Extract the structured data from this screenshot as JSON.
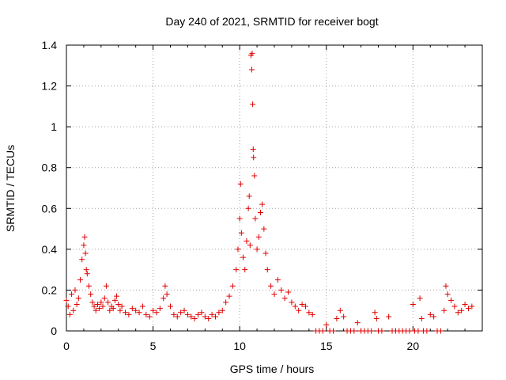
{
  "chart_data": {
    "type": "scatter",
    "title": "Day 240 of 2021, SRMTID for receiver bogt",
    "xlabel": "GPS time / hours",
    "ylabel": "SRMTID / TECUs",
    "xlim": [
      0,
      24
    ],
    "ylim": [
      0,
      1.4
    ],
    "x_ticks": [
      0,
      5,
      10,
      15,
      20
    ],
    "x_tick_labels": [
      "0",
      "5",
      "10",
      "15",
      "20"
    ],
    "y_ticks": [
      0,
      0.2,
      0.4,
      0.6,
      0.8,
      1.0,
      1.2,
      1.4
    ],
    "y_tick_labels": [
      "0",
      "0.2",
      "0.4",
      "0.6",
      "0.8",
      "1",
      "1.2",
      "1.4"
    ],
    "grid": true,
    "marker": "+",
    "marker_color": "#e00000",
    "series": [
      {
        "name": "SRMTID",
        "points": [
          [
            0.0,
            0.15
          ],
          [
            0.1,
            0.12
          ],
          [
            0.2,
            0.08
          ],
          [
            0.3,
            0.18
          ],
          [
            0.4,
            0.1
          ],
          [
            0.5,
            0.2
          ],
          [
            0.6,
            0.13
          ],
          [
            0.7,
            0.16
          ],
          [
            0.8,
            0.25
          ],
          [
            0.9,
            0.35
          ],
          [
            1.0,
            0.42
          ],
          [
            1.05,
            0.46
          ],
          [
            1.1,
            0.38
          ],
          [
            1.15,
            0.3
          ],
          [
            1.2,
            0.28
          ],
          [
            1.3,
            0.22
          ],
          [
            1.4,
            0.18
          ],
          [
            1.5,
            0.14
          ],
          [
            1.6,
            0.12
          ],
          [
            1.7,
            0.1
          ],
          [
            1.8,
            0.13
          ],
          [
            1.9,
            0.11
          ],
          [
            2.0,
            0.14
          ],
          [
            2.1,
            0.12
          ],
          [
            2.2,
            0.16
          ],
          [
            2.3,
            0.22
          ],
          [
            2.4,
            0.14
          ],
          [
            2.5,
            0.1
          ],
          [
            2.6,
            0.12
          ],
          [
            2.7,
            0.11
          ],
          [
            2.8,
            0.15
          ],
          [
            2.9,
            0.17
          ],
          [
            3.0,
            0.13
          ],
          [
            3.1,
            0.1
          ],
          [
            3.2,
            0.12
          ],
          [
            3.4,
            0.09
          ],
          [
            3.6,
            0.08
          ],
          [
            3.8,
            0.11
          ],
          [
            4.0,
            0.1
          ],
          [
            4.2,
            0.09
          ],
          [
            4.4,
            0.12
          ],
          [
            4.6,
            0.08
          ],
          [
            4.8,
            0.07
          ],
          [
            5.0,
            0.1
          ],
          [
            5.2,
            0.09
          ],
          [
            5.4,
            0.11
          ],
          [
            5.6,
            0.16
          ],
          [
            5.7,
            0.22
          ],
          [
            5.8,
            0.18
          ],
          [
            6.0,
            0.12
          ],
          [
            6.2,
            0.08
          ],
          [
            6.4,
            0.07
          ],
          [
            6.6,
            0.09
          ],
          [
            6.8,
            0.1
          ],
          [
            7.0,
            0.08
          ],
          [
            7.2,
            0.07
          ],
          [
            7.4,
            0.06
          ],
          [
            7.6,
            0.08
          ],
          [
            7.8,
            0.09
          ],
          [
            8.0,
            0.07
          ],
          [
            8.2,
            0.06
          ],
          [
            8.4,
            0.08
          ],
          [
            8.6,
            0.07
          ],
          [
            8.8,
            0.09
          ],
          [
            9.0,
            0.1
          ],
          [
            9.2,
            0.14
          ],
          [
            9.4,
            0.17
          ],
          [
            9.6,
            0.22
          ],
          [
            9.8,
            0.3
          ],
          [
            9.9,
            0.4
          ],
          [
            10.0,
            0.55
          ],
          [
            10.05,
            0.72
          ],
          [
            10.1,
            0.48
          ],
          [
            10.2,
            0.36
          ],
          [
            10.3,
            0.3
          ],
          [
            10.4,
            0.44
          ],
          [
            10.5,
            0.6
          ],
          [
            10.55,
            0.66
          ],
          [
            10.6,
            0.42
          ],
          [
            10.65,
            1.35
          ],
          [
            10.7,
            1.28
          ],
          [
            10.72,
            1.36
          ],
          [
            10.75,
            1.11
          ],
          [
            10.78,
            0.89
          ],
          [
            10.8,
            0.85
          ],
          [
            10.85,
            0.76
          ],
          [
            10.9,
            0.55
          ],
          [
            11.0,
            0.4
          ],
          [
            11.1,
            0.46
          ],
          [
            11.2,
            0.58
          ],
          [
            11.3,
            0.62
          ],
          [
            11.4,
            0.5
          ],
          [
            11.5,
            0.38
          ],
          [
            11.6,
            0.3
          ],
          [
            11.8,
            0.22
          ],
          [
            12.0,
            0.18
          ],
          [
            12.2,
            0.25
          ],
          [
            12.4,
            0.2
          ],
          [
            12.6,
            0.16
          ],
          [
            12.8,
            0.19
          ],
          [
            13.0,
            0.14
          ],
          [
            13.2,
            0.12
          ],
          [
            13.4,
            0.1
          ],
          [
            13.6,
            0.13
          ],
          [
            13.8,
            0.12
          ],
          [
            14.0,
            0.09
          ],
          [
            14.2,
            0.08
          ],
          [
            14.4,
            0.0
          ],
          [
            14.6,
            0.0
          ],
          [
            14.8,
            0.0
          ],
          [
            15.0,
            0.03
          ],
          [
            15.2,
            0.0
          ],
          [
            15.4,
            0.0
          ],
          [
            15.6,
            0.06
          ],
          [
            15.8,
            0.1
          ],
          [
            16.0,
            0.07
          ],
          [
            16.2,
            0.0
          ],
          [
            16.4,
            0.0
          ],
          [
            16.6,
            0.0
          ],
          [
            16.8,
            0.04
          ],
          [
            17.0,
            0.0
          ],
          [
            17.2,
            0.0
          ],
          [
            17.4,
            0.0
          ],
          [
            17.6,
            0.0
          ],
          [
            17.8,
            0.09
          ],
          [
            17.9,
            0.06
          ],
          [
            18.0,
            0.0
          ],
          [
            18.2,
            0.0
          ],
          [
            18.6,
            0.07
          ],
          [
            18.8,
            0.0
          ],
          [
            19.0,
            0.0
          ],
          [
            19.2,
            0.0
          ],
          [
            19.4,
            0.0
          ],
          [
            19.6,
            0.0
          ],
          [
            19.8,
            0.0
          ],
          [
            20.0,
            0.13
          ],
          [
            20.1,
            0.0
          ],
          [
            20.3,
            0.0
          ],
          [
            20.4,
            0.16
          ],
          [
            20.5,
            0.06
          ],
          [
            20.6,
            0.0
          ],
          [
            20.8,
            0.0
          ],
          [
            21.0,
            0.08
          ],
          [
            21.2,
            0.07
          ],
          [
            21.4,
            0.0
          ],
          [
            21.6,
            0.0
          ],
          [
            21.8,
            0.1
          ],
          [
            21.9,
            0.22
          ],
          [
            22.0,
            0.18
          ],
          [
            22.2,
            0.15
          ],
          [
            22.4,
            0.12
          ],
          [
            22.6,
            0.09
          ],
          [
            22.8,
            0.1
          ],
          [
            23.0,
            0.13
          ],
          [
            23.2,
            0.11
          ],
          [
            23.4,
            0.12
          ]
        ]
      }
    ]
  }
}
